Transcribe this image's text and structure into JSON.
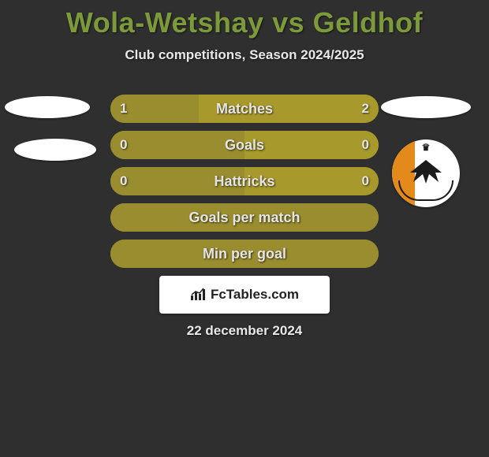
{
  "title": "Wola-Wetshay vs Geldhof",
  "subtitle": "Club competitions, Season 2024/2025",
  "date": "22 december 2024",
  "colors": {
    "left": "#9a8d2f",
    "right": "#a7992c",
    "neutral": "#a7992c",
    "text": "#e5e5e5",
    "title": "#7d9a3a",
    "background": "#2f2f2f"
  },
  "bars": [
    {
      "label": "Matches",
      "left_val": "1",
      "right_val": "2",
      "left_pct": 33,
      "right_pct": 67,
      "show_vals": true
    },
    {
      "label": "Goals",
      "left_val": "0",
      "right_val": "0",
      "left_pct": 50,
      "right_pct": 50,
      "show_vals": true
    },
    {
      "label": "Hattricks",
      "left_val": "0",
      "right_val": "0",
      "left_pct": 50,
      "right_pct": 50,
      "show_vals": true
    },
    {
      "label": "Goals per match",
      "left_val": "",
      "right_val": "",
      "left_pct": 100,
      "right_pct": 0,
      "show_vals": false
    },
    {
      "label": "Min per goal",
      "left_val": "",
      "right_val": "",
      "left_pct": 100,
      "right_pct": 0,
      "show_vals": false
    }
  ],
  "logo": "FcTables.com",
  "crest": {
    "stripe_color": "#e48a1a",
    "bg_color": "#ffffff"
  }
}
